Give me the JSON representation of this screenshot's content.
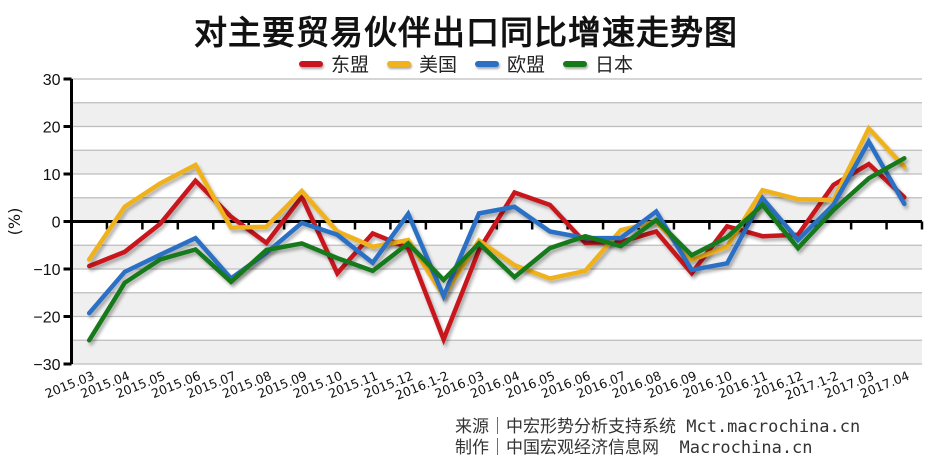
{
  "header": {
    "title": "对主要贸易伙伴出口同比增速走势图"
  },
  "legend": [
    {
      "label": "东盟",
      "color": "#c8141e"
    },
    {
      "label": "美国",
      "color": "#f0b21e"
    },
    {
      "label": "欧盟",
      "color": "#2a6fc4"
    },
    {
      "label": "日本",
      "color": "#177a1a"
    }
  ],
  "footer": {
    "line1": "来源｜中宏形势分析支持系统 Mct.macrochina.cn",
    "line2": "制作｜中国宏观经济信息网  Macrochina.cn"
  },
  "chart_data": {
    "type": "line",
    "title": "对主要贸易伙伴出口同比增速走势图",
    "xlabel": "",
    "ylabel": "(%)",
    "ylim": [
      -30,
      30
    ],
    "yticks": [
      -30,
      -20,
      -10,
      0,
      10,
      20,
      30
    ],
    "grid": true,
    "legend_position": "top",
    "categories": [
      "2015.03",
      "2015.04",
      "2015.05",
      "2015.06",
      "2015.07",
      "2015.08",
      "2015.09",
      "2015.10",
      "2015.11",
      "2015.12",
      "2016.1-2",
      "2016.03",
      "2016.04",
      "2016.05",
      "2016.06",
      "2016.07",
      "2016.08",
      "2016.09",
      "2016.10",
      "2016.11",
      "2016.12",
      "2017.1-2",
      "2017.03",
      "2017.04"
    ],
    "series": [
      {
        "name": "东盟",
        "color": "#c8141e",
        "values": [
          -9.4,
          -6.4,
          -0.5,
          8.6,
          1.0,
          -4.5,
          5.2,
          -10.9,
          -2.5,
          -5.6,
          -24.8,
          -6.0,
          6.1,
          3.5,
          -4.5,
          -4.3,
          -2.1,
          -10.9,
          -1.0,
          -3.1,
          -2.8,
          7.7,
          12.1,
          5.1
        ]
      },
      {
        "name": "美国",
        "color": "#f0b21e",
        "values": [
          -8.0,
          3.1,
          8.0,
          11.9,
          -1.3,
          -1.1,
          6.4,
          -2.1,
          -5.3,
          -3.9,
          -15.7,
          -4.0,
          -9.2,
          -12.0,
          -10.4,
          -1.8,
          0.0,
          -8.1,
          -5.3,
          6.6,
          4.7,
          4.5,
          19.6,
          11.5
        ]
      },
      {
        "name": "欧盟",
        "color": "#2a6fc4",
        "values": [
          -19.3,
          -10.6,
          -7.0,
          -3.5,
          -12.0,
          -6.6,
          -0.3,
          -2.8,
          -8.7,
          1.6,
          -15.7,
          1.7,
          3.1,
          -2.1,
          -3.5,
          -3.5,
          2.1,
          -10.2,
          -8.8,
          4.9,
          -3.9,
          3.5,
          16.8,
          3.7
        ]
      },
      {
        "name": "日本",
        "color": "#177a1a",
        "values": [
          -25.0,
          -12.9,
          -8.0,
          -5.9,
          -12.7,
          -6.0,
          -4.6,
          -7.7,
          -10.4,
          -4.6,
          -12.3,
          -4.6,
          -11.7,
          -5.6,
          -3.1,
          -5.2,
          0.3,
          -7.1,
          -3.3,
          3.5,
          -5.6,
          2.4,
          9.1,
          13.3
        ]
      }
    ]
  }
}
